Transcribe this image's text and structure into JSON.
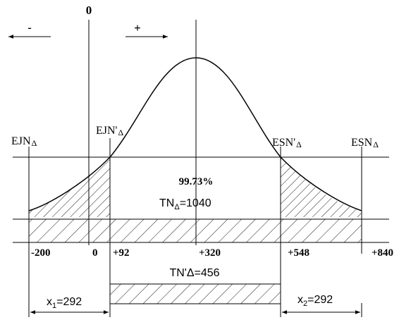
{
  "direction": {
    "zero_label": "0",
    "minus_label": "-",
    "plus_label": "+"
  },
  "limits": {
    "ejn": {
      "text": "EJN",
      "delta": "Δ"
    },
    "ejn_prime": {
      "text": "EJN'",
      "delta": "Δ"
    },
    "esn_prime": {
      "text": "ESN'",
      "delta": "Δ"
    },
    "esn": {
      "text": "ESN",
      "delta": "Δ"
    }
  },
  "percent_label": "99.73%",
  "tn_total": {
    "prefix": "TN",
    "sub": "Δ",
    "value": "=1040"
  },
  "tn_prime": {
    "label": "TN'Δ=456"
  },
  "scale_values": {
    "v_minus200": "-200",
    "v_0": "0",
    "v_92": "+92",
    "v_320": "+320",
    "v_548": "+548",
    "v_840": "+840"
  },
  "x1": {
    "prefix": "x",
    "sub": "1",
    "value": "=292"
  },
  "x2": {
    "prefix": "x",
    "sub": "2",
    "value": "=292"
  },
  "colors": {
    "ink": "#000000",
    "background": "#ffffff"
  }
}
